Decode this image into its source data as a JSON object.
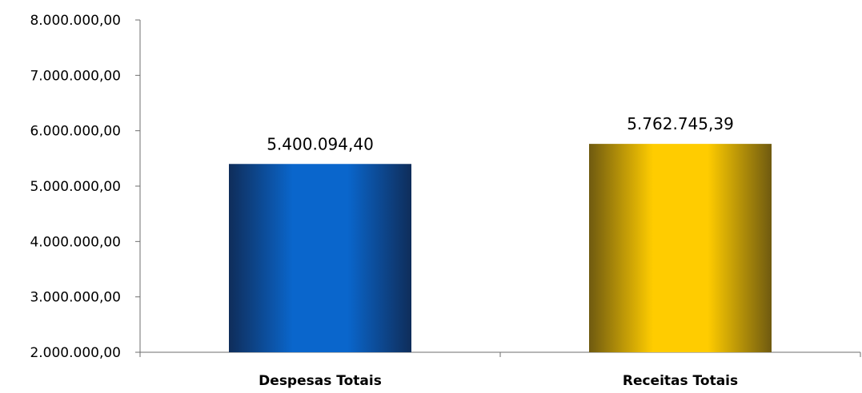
{
  "chart_data": {
    "type": "bar",
    "categories": [
      "Despesas Totais",
      "Receitas Totais"
    ],
    "values": [
      5400094.4,
      5762745.39
    ],
    "data_labels": [
      "5.400.094,40",
      "5.762.745,39"
    ],
    "ylim": [
      2000000,
      8000000
    ],
    "yticks": [
      2000000,
      3000000,
      4000000,
      5000000,
      6000000,
      7000000,
      8000000
    ],
    "ytick_labels": [
      "2.000.000,00",
      "3.000.000,00",
      "4.000.000,00",
      "5.000.000,00",
      "6.000.000,00",
      "7.000.000,00",
      "8.000.000,00"
    ],
    "colors": {
      "bar_0": {
        "edge": "#0f2d5a",
        "center": "#0a66cc"
      },
      "bar_1": {
        "edge": "#6f5a10",
        "center": "#ffcc00"
      }
    },
    "grid": false,
    "legend": "none"
  }
}
